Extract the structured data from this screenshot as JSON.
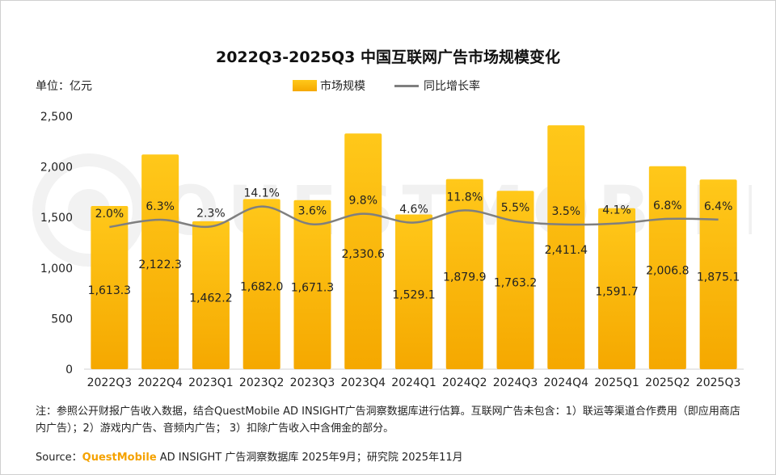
{
  "chart_data": {
    "type": "bar",
    "title": "2022Q3-2025Q3 中国互联网广告市场规模变化",
    "unit_label": "单位：亿元",
    "categories": [
      "2022Q3",
      "2022Q4",
      "2023Q1",
      "2023Q2",
      "2023Q3",
      "2023Q4",
      "2024Q1",
      "2024Q2",
      "2024Q3",
      "2024Q4",
      "2025Q1",
      "2025Q2",
      "2025Q3"
    ],
    "series": [
      {
        "name": "市场规模",
        "type": "bar",
        "values": [
          1613.3,
          2122.3,
          1462.2,
          1682.0,
          1671.3,
          2330.6,
          1529.1,
          1879.9,
          1763.2,
          2411.4,
          1591.7,
          2006.8,
          1875.1
        ],
        "labels": [
          "1,613.3",
          "2,122.3",
          "1,462.2",
          "1,682.0",
          "1,671.3",
          "2,330.6",
          "1,529.1",
          "1,879.9",
          "1,763.2",
          "2,411.4",
          "1,591.7",
          "2,006.8",
          "1,875.1"
        ]
      },
      {
        "name": "同比增长率",
        "type": "line",
        "values": [
          2.0,
          6.3,
          2.3,
          14.1,
          3.6,
          9.8,
          4.6,
          11.8,
          5.5,
          3.5,
          4.1,
          6.8,
          6.4
        ],
        "labels": [
          "2.0%",
          "6.3%",
          "2.3%",
          "14.1%",
          "3.6%",
          "9.8%",
          "4.6%",
          "11.8%",
          "5.5%",
          "3.5%",
          "4.1%",
          "6.8%",
          "6.4%"
        ]
      }
    ],
    "ylim": [
      0,
      2500
    ],
    "yticks": [
      0,
      500,
      1000,
      1500,
      2000,
      2500
    ],
    "ytick_labels": [
      "0",
      "500",
      "1,000",
      "1,500",
      "2,000",
      "2,500"
    ],
    "grid": false,
    "legend": "top-center",
    "colors": {
      "bar_top": "#ffc81a",
      "bar_bottom": "#f5a800",
      "line": "#7f7f7f"
    }
  },
  "footer": {
    "note": "注：参照公开财报广告收入数据，结合QuestMobile AD INSIGHT广告洞察数据库进行估算。互联网广告未包含：1）联运等渠道合作费用（即应用商店内广告）；2）游戏内广告、音频内广告；  3）扣除广告收入中含佣金的部分。",
    "source_prefix": "Source：",
    "source_brand": "QuestMobile",
    "source_rest": " AD INSIGHT 广告洞察数据库 2025年9月；研究院 2025年11月"
  },
  "watermark_text": "QUESTMOBILE"
}
